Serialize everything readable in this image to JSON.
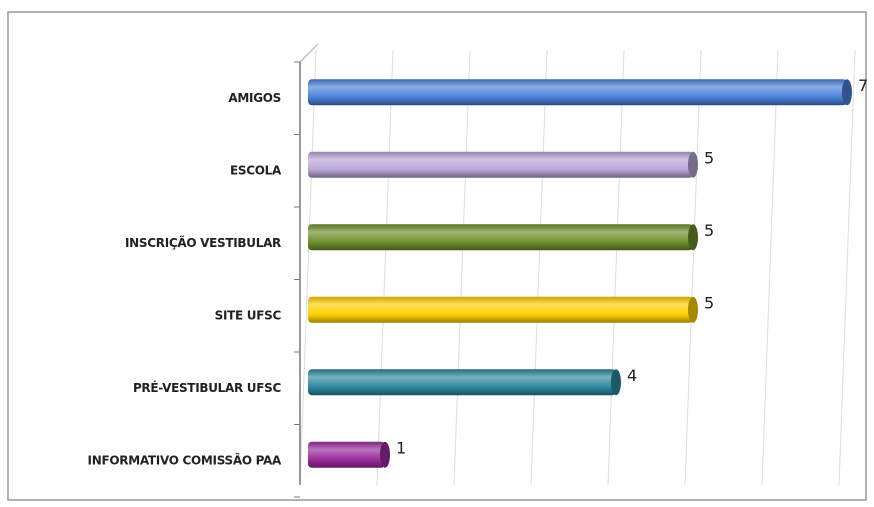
{
  "chart_data": {
    "type": "hbar",
    "categories": [
      "AMIGOS",
      "ESCOLA",
      "INSCRIÇÃO VESTIBULAR",
      "SITE UFSC",
      "PRÉ-VESTIBULAR UFSC",
      "INFORMATIVO COMISSÃO PAA"
    ],
    "values": [
      7,
      5,
      5,
      5,
      4,
      1
    ],
    "colors": [
      "#4a80d8",
      "#b8a5d6",
      "#6e8e2c",
      "#ffd000",
      "#2c879d",
      "#992b9c"
    ],
    "xlim": [
      0,
      7
    ],
    "xticks": [
      0,
      1,
      2,
      3,
      4,
      5,
      6,
      7
    ],
    "grid": true
  }
}
